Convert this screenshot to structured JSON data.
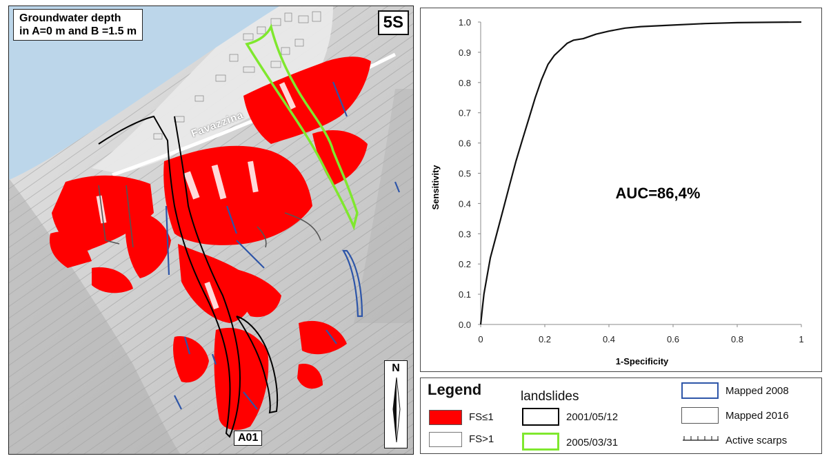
{
  "map": {
    "title_line1": "Groundwater depth",
    "title_line2": "in A=0 m and B =1.5 m",
    "scenario": "5S",
    "place_name": "Favazzina",
    "landslide_id": "A01",
    "north_label": "N",
    "colors": {
      "sea": "#bcd6ea",
      "unstable": "#ff0000",
      "slide_2001": "#000000",
      "slide_2005": "#7fe82e",
      "mapped_2008": "#2d55a8"
    }
  },
  "chart_data": {
    "type": "line",
    "title": "",
    "xlabel": "1-Specificity",
    "ylabel": "Sensitivity",
    "xlim": [
      0,
      1
    ],
    "ylim": [
      0,
      1
    ],
    "x_ticks": [
      "0",
      "0.2",
      "0.4",
      "0.6",
      "0.8",
      "1"
    ],
    "y_ticks": [
      "0.0",
      "0.1",
      "0.2",
      "0.3",
      "0.4",
      "0.5",
      "0.6",
      "0.7",
      "0.8",
      "0.9",
      "1.0"
    ],
    "annotation": "AUC=86,4%",
    "grid": false,
    "series": [
      {
        "x": [
          0,
          0.005,
          0.01,
          0.02,
          0.03,
          0.05,
          0.07,
          0.09,
          0.11,
          0.13,
          0.15,
          0.17,
          0.19,
          0.21,
          0.23,
          0.25,
          0.27,
          0.29,
          0.32,
          0.36,
          0.4,
          0.45,
          0.5,
          0.6,
          0.7,
          0.8,
          0.9,
          1.0
        ],
        "y": [
          0,
          0.05,
          0.1,
          0.16,
          0.22,
          0.3,
          0.38,
          0.46,
          0.54,
          0.61,
          0.68,
          0.75,
          0.81,
          0.86,
          0.89,
          0.91,
          0.93,
          0.94,
          0.945,
          0.96,
          0.97,
          0.98,
          0.985,
          0.99,
          0.995,
          0.998,
          0.999,
          1.0
        ]
      }
    ]
  },
  "legend": {
    "heading": "Legend",
    "fs_unstable": "FS≤1",
    "fs_stable": "FS>1",
    "landslides_heading": "landslides",
    "slide_2001": "2001/05/12",
    "slide_2005": "2005/03/31",
    "mapped_2008": "Mapped 2008",
    "mapped_2016": "Mapped 2016",
    "active_scarps": "Active scarps"
  }
}
